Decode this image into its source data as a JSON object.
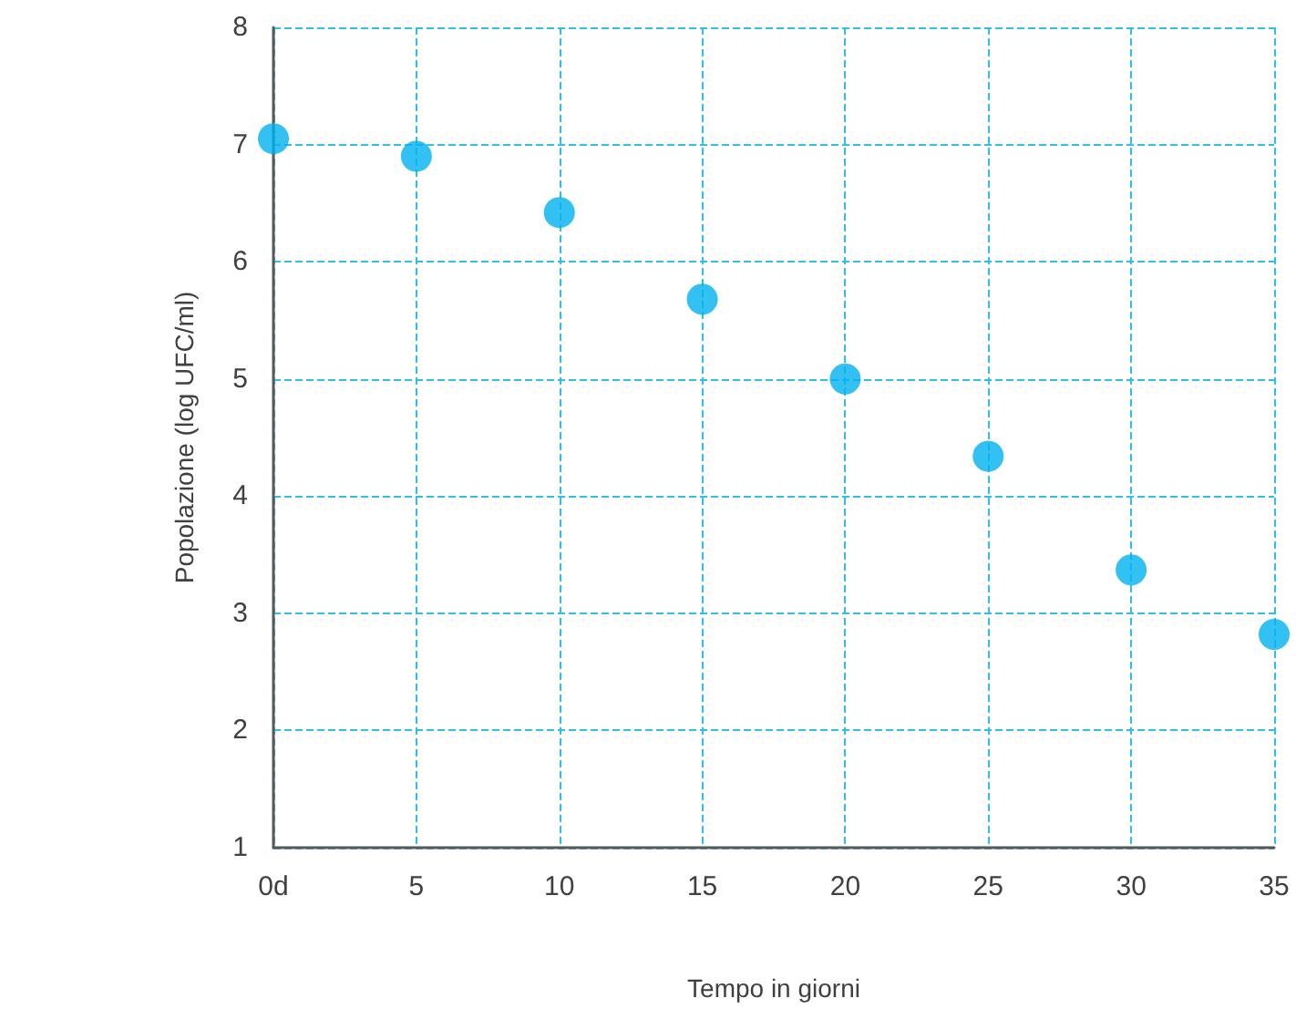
{
  "chart_data": {
    "type": "scatter",
    "xlabel": "Tempo in giorni",
    "ylabel": "Popolazione (log UFC/ml)",
    "x": [
      0,
      5,
      10,
      15,
      20,
      25,
      30,
      35
    ],
    "series": [
      {
        "color": "#00b0f0",
        "values": [
          7.05,
          6.9,
          6.42,
          5.68,
          5.0,
          4.34,
          3.37,
          2.82
        ]
      }
    ],
    "xlim": [
      0,
      35
    ],
    "xticks": [
      {
        "value": 0,
        "label": "0d"
      },
      5,
      10,
      15,
      20,
      25,
      30,
      35
    ],
    "ylim": [
      1,
      8
    ],
    "yticks": [
      1,
      2,
      3,
      4,
      5,
      6,
      7,
      8
    ],
    "grid": true,
    "marker": "circle"
  }
}
